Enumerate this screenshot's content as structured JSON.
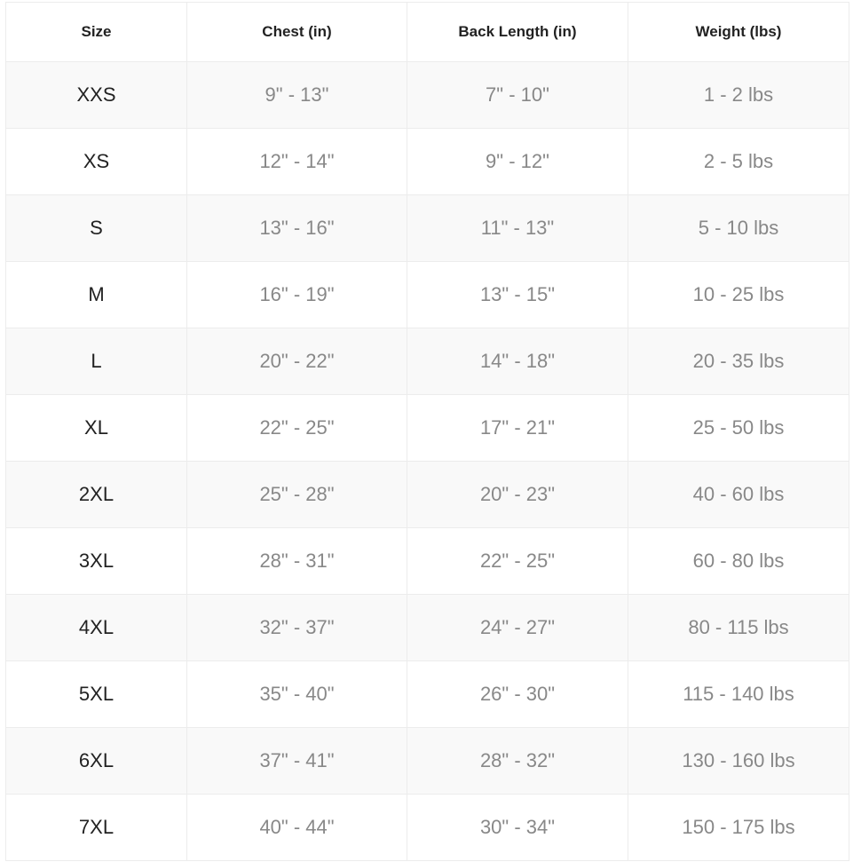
{
  "table": {
    "headers": [
      "Size",
      "Chest (in)",
      "Back Length (in)",
      "Weight (lbs)"
    ],
    "rows": [
      [
        "XXS",
        "9\" - 13\"",
        "7\" - 10\"",
        "1 - 2 lbs"
      ],
      [
        "XS",
        "12\" - 14\"",
        "9\" - 12\"",
        "2 - 5 lbs"
      ],
      [
        "S",
        "13\" - 16\"",
        "11\" - 13\"",
        "5 - 10 lbs"
      ],
      [
        "M",
        "16\" - 19\"",
        "13\" - 15\"",
        "10 - 25 lbs"
      ],
      [
        "L",
        "20\" - 22\"",
        "14\" - 18\"",
        "20 - 35 lbs"
      ],
      [
        "XL",
        "22\" - 25\"",
        "17\" - 21\"",
        "25 - 50 lbs"
      ],
      [
        "2XL",
        "25\" - 28\"",
        "20\" - 23\"",
        "40 - 60 lbs"
      ],
      [
        "3XL",
        "28\" - 31\"",
        "22\" - 25\"",
        "60 - 80 lbs"
      ],
      [
        "4XL",
        "32\" - 37\"",
        "24\" - 27\"",
        "80 - 115 lbs"
      ],
      [
        "5XL",
        "35\" - 40\"",
        "26\" - 30\"",
        "115 - 140 lbs"
      ],
      [
        "6XL",
        "37\" - 41\"",
        "28\" - 32\"",
        "130 - 160 lbs"
      ],
      [
        "7XL",
        "40\" - 44\"",
        "30\" - 34\"",
        "150 - 175 lbs"
      ]
    ]
  }
}
